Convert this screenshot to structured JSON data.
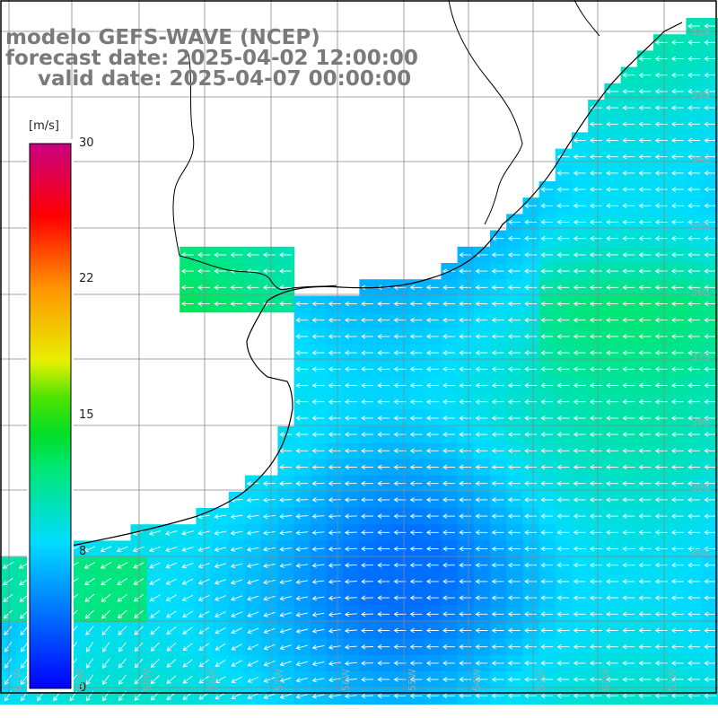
{
  "title": {
    "model": "modelo GEFS-WAVE (NCEP)",
    "forecast": "forecast date: 2025-04-02 12:00:00",
    "valid": "valid date: 2025-04-07 00:00:00"
  },
  "colorbar": {
    "unit": "[m/s]",
    "min": 0,
    "max": 30,
    "ticks": [
      "30",
      "22",
      "15",
      "8",
      "0"
    ],
    "tick_values": [
      30,
      22,
      15,
      8,
      0
    ]
  },
  "lat_labels": [
    "32S",
    "33S",
    "34S",
    "35S",
    "36S",
    "37S",
    "38S",
    "39S",
    "40S"
  ],
  "lon_labels": [
    "61W",
    "60W",
    "59W",
    "58W",
    "57W",
    "56W",
    "55W",
    "54W",
    "53W",
    "52W",
    "51W"
  ],
  "colors": {
    "land": "#ffffff",
    "grid": "#808080",
    "coast": "#000000",
    "arrow": "#ffffff"
  },
  "wind_field_note_level_ms": {
    "open_sea_min": 6,
    "open_sea_max": 11,
    "nearshore_south": 12
  }
}
